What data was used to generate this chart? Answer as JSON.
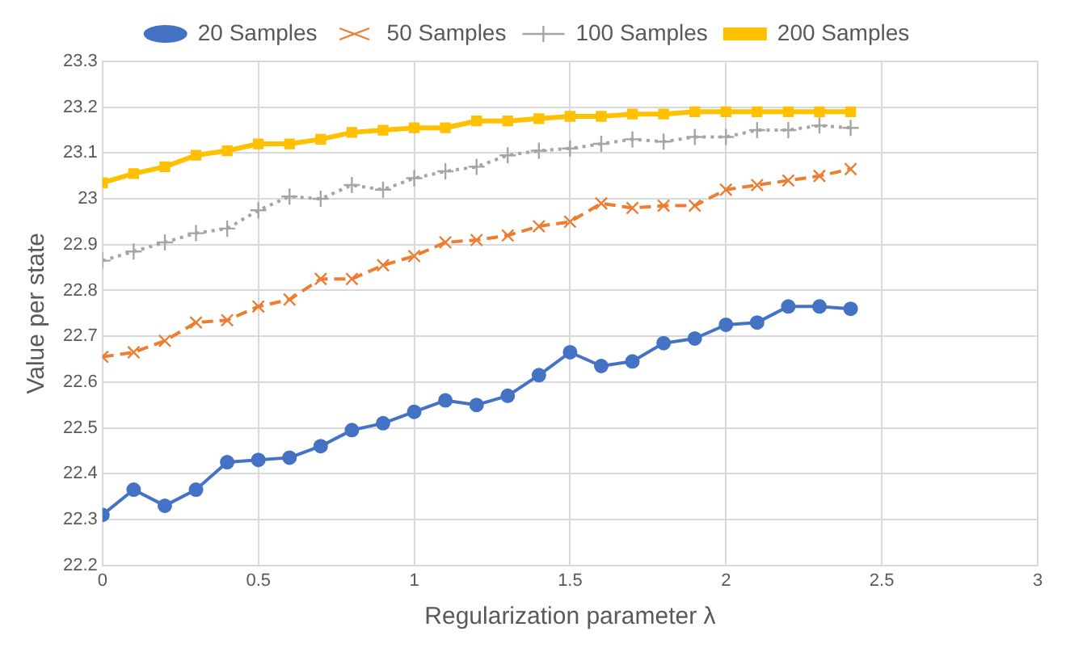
{
  "chart_data": {
    "type": "line",
    "xlabel": "Regularization parameter λ",
    "ylabel": "Value per state",
    "x": [
      0,
      0.1,
      0.2,
      0.3,
      0.4,
      0.5,
      0.6,
      0.7,
      0.8,
      0.9,
      1,
      1.1,
      1.2,
      1.3,
      1.4,
      1.5,
      1.6,
      1.7,
      1.8,
      1.9,
      2,
      2.1,
      2.2,
      2.3,
      2.4
    ],
    "series": [
      {
        "name": "20 Samples",
        "color": "#4472c4",
        "marker": "circle",
        "line_style": "solid",
        "values": [
          22.31,
          22.365,
          22.33,
          22.365,
          22.425,
          22.43,
          22.435,
          22.46,
          22.495,
          22.51,
          22.535,
          22.56,
          22.55,
          22.57,
          22.615,
          22.665,
          22.635,
          22.645,
          22.685,
          22.695,
          22.725,
          22.73,
          22.765,
          22.765,
          22.76
        ]
      },
      {
        "name": "50 Samples",
        "color": "#ed7d31",
        "marker": "cross",
        "line_style": "dashed",
        "values": [
          22.655,
          22.665,
          22.69,
          22.73,
          22.735,
          22.765,
          22.78,
          22.825,
          22.825,
          22.855,
          22.875,
          22.905,
          22.91,
          22.92,
          22.94,
          22.95,
          22.99,
          22.98,
          22.985,
          22.985,
          23.02,
          23.03,
          23.04,
          23.05,
          23.065
        ]
      },
      {
        "name": "100 Samples",
        "color": "#a5a5a5",
        "marker": "plus",
        "line_style": "dotted",
        "values": [
          22.865,
          22.885,
          22.905,
          22.925,
          22.935,
          22.975,
          23.005,
          23.0,
          23.03,
          23.02,
          23.045,
          23.06,
          23.07,
          23.095,
          23.105,
          23.11,
          23.12,
          23.13,
          23.125,
          23.135,
          23.135,
          23.15,
          23.15,
          23.16,
          23.155
        ]
      },
      {
        "name": "200 Samples",
        "color": "#ffc000",
        "marker": "square",
        "line_style": "solid",
        "values": [
          23.035,
          23.055,
          23.07,
          23.095,
          23.105,
          23.12,
          23.12,
          23.13,
          23.145,
          23.15,
          23.155,
          23.155,
          23.17,
          23.17,
          23.175,
          23.18,
          23.18,
          23.185,
          23.185,
          23.19,
          23.19,
          23.19,
          23.19,
          23.19,
          23.19
        ]
      }
    ],
    "xlim": [
      0,
      3
    ],
    "xticks": [
      0,
      0.5,
      1,
      1.5,
      2,
      2.5,
      3
    ],
    "ylim": [
      22.2,
      23.3
    ],
    "yticks": [
      22.2,
      22.3,
      22.4,
      22.5,
      22.6,
      22.7,
      22.8,
      22.9,
      23,
      23.1,
      23.2,
      23.3
    ],
    "grid": true,
    "legend": "top"
  }
}
